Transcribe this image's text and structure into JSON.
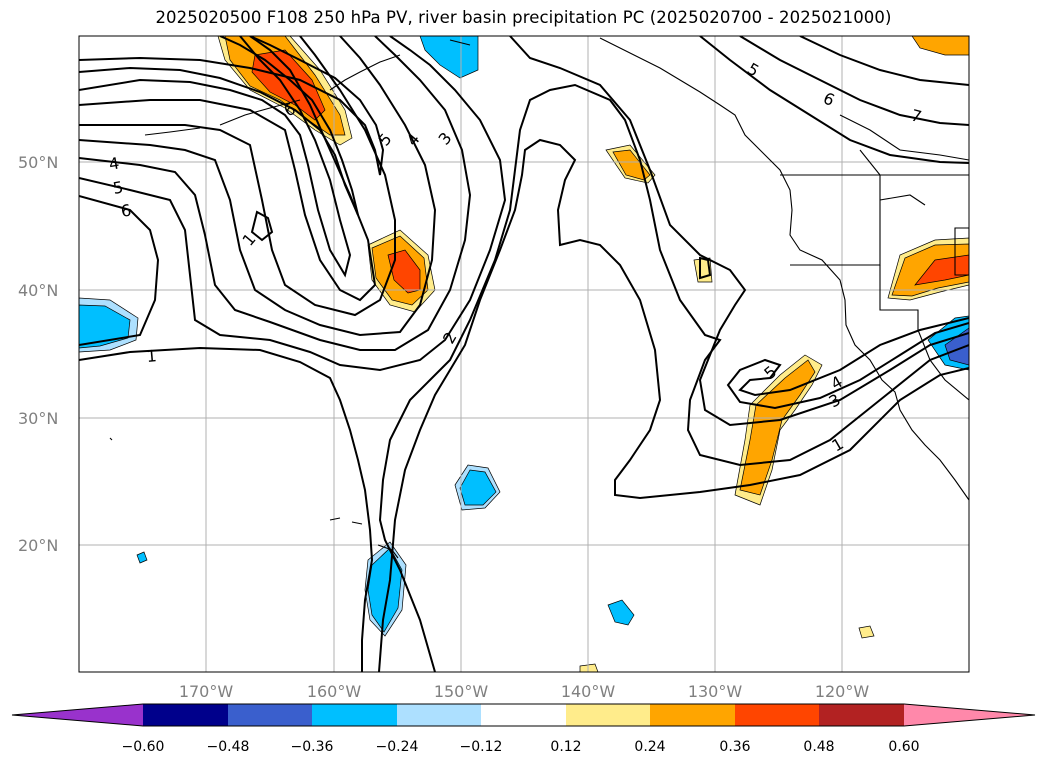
{
  "title": "2025020500 F108 250 hPa PV, river basin precipitation PC (2025020700 - 2025021000)",
  "lon_labels": [
    "170°W",
    "160°W",
    "150°W",
    "140°W",
    "130°W",
    "120°W"
  ],
  "lat_labels": [
    "50°N",
    "40°N",
    "30°N",
    "20°N"
  ],
  "colorbar": {
    "ticks": [
      "−0.60",
      "−0.48",
      "−0.36",
      "−0.24",
      "−0.12",
      "0.12",
      "0.24",
      "0.36",
      "0.48",
      "0.60"
    ],
    "colors": [
      "#9932CC",
      "#00008B",
      "#3A5FCD",
      "#00BFFF",
      "#ADE0FF",
      "#FFFFFF",
      "#FFEC8B",
      "#FFA500",
      "#FF4500",
      "#B22222",
      "#FF88AA"
    ]
  },
  "contour_labels": [
    "4",
    "5",
    "6",
    "1",
    "1",
    "6",
    "5",
    "4",
    "3",
    "2",
    "5",
    "4",
    "3",
    "1",
    "5",
    "6",
    "7"
  ]
}
